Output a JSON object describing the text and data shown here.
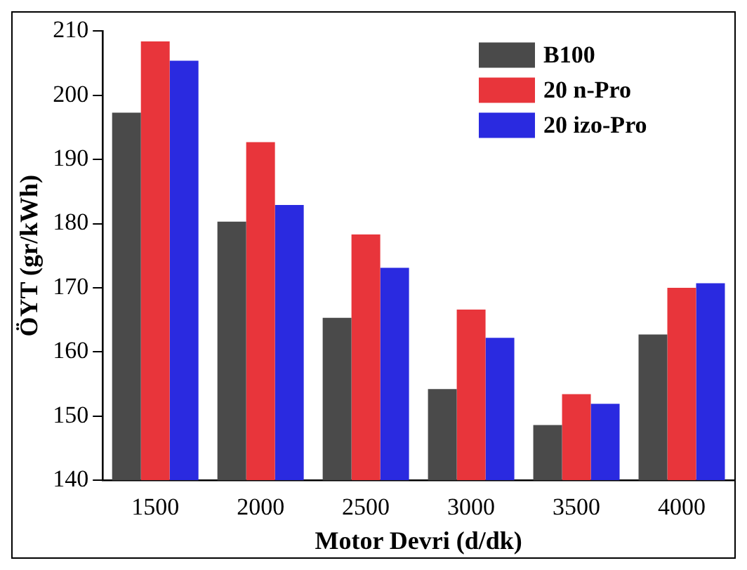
{
  "chart_data": {
    "type": "bar",
    "xlabel": "Motor Devri (d/dk)",
    "ylabel": "ÖYT (gr/kWh)",
    "categories": [
      "1500",
      "2000",
      "2500",
      "3000",
      "3500",
      "4000"
    ],
    "series": [
      {
        "name": "B100",
        "color": "#4a4a4a",
        "values": [
          197.3,
          180.3,
          165.3,
          154.2,
          148.6,
          162.7
        ]
      },
      {
        "name": "20 n-Pro",
        "color": "#e8353b",
        "values": [
          208.4,
          192.7,
          178.3,
          166.6,
          153.4,
          170.0
        ]
      },
      {
        "name": "20 izo-Pro",
        "color": "#2a2ae0",
        "values": [
          205.4,
          182.9,
          173.1,
          162.2,
          151.9,
          170.7
        ]
      }
    ],
    "ylim": [
      140,
      210
    ],
    "yticks": [
      140,
      150,
      160,
      170,
      180,
      190,
      200,
      210
    ],
    "grid": false,
    "legend": "top right"
  }
}
